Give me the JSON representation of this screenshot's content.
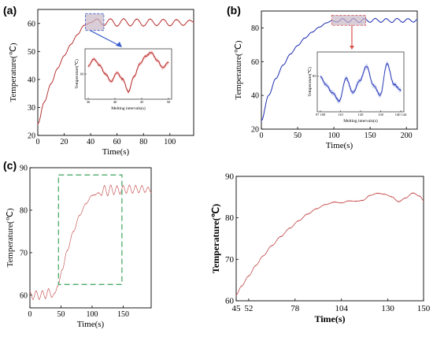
{
  "panel_labels": [
    "(a)",
    "(b)",
    "(c)"
  ],
  "colors": {
    "red_line": "#b22222",
    "red_band": "#f2a8a8",
    "blue_line": "#1f2fb0",
    "blue_band": "#aab4ee",
    "highlight_fill": "#c9b8c6",
    "arrow_blue": "#3a5fcd",
    "arrow_red": "#d9534f",
    "green_dash": "#4daa6a"
  },
  "chart_data": [
    {
      "id": "a-main",
      "type": "line",
      "xlabel": "Time(s)",
      "ylabel": "Temperature(℃)",
      "xlim": [
        0,
        118
      ],
      "ylim": [
        20,
        65
      ],
      "xticks": [
        0,
        20,
        40,
        60,
        80,
        100
      ],
      "yticks": [
        20,
        30,
        40,
        50,
        60
      ],
      "series": [
        {
          "color": "red",
          "x": [
            0,
            5,
            10,
            15,
            20,
            25,
            30,
            35,
            40,
            45,
            50,
            55,
            60,
            65,
            70,
            75,
            80,
            85,
            90,
            95,
            100,
            105,
            110,
            115,
            118
          ],
          "values": [
            24,
            32,
            38.5,
            44,
            48.5,
            52.5,
            56,
            59.3,
            60.3,
            61.6,
            59.2,
            61.7,
            59,
            61.7,
            59.1,
            61.6,
            59,
            61.6,
            59.2,
            61.5,
            59.1,
            61.4,
            59.3,
            61.2,
            60.4
          ]
        }
      ],
      "highlight_x": [
        36,
        50
      ]
    },
    {
      "id": "a-inset",
      "type": "line",
      "xlabel": "Melting intervals(s)",
      "ylabel": "Temperature(℃)",
      "ylim": [
        58,
        62
      ],
      "xtick_labels": [
        "36",
        "40",
        "45",
        "50"
      ],
      "ytick_labels": [
        "60"
      ],
      "series": [
        {
          "color": "red",
          "x": [
            36,
            37,
            38,
            39,
            40,
            41,
            42,
            43,
            44,
            45,
            46,
            47,
            48,
            49,
            50
          ],
          "values": [
            60.6,
            61.2,
            60.7,
            60.0,
            59.4,
            60.1,
            59.6,
            58.6,
            59.8,
            60.8,
            61.4,
            61.7,
            61.1,
            60.5,
            60.9
          ]
        }
      ]
    },
    {
      "id": "b-main",
      "type": "line",
      "xlabel": "Time(s)",
      "ylabel": "Temperature(℃)",
      "xlim": [
        0,
        215
      ],
      "ylim": [
        20,
        90
      ],
      "xticks": [
        0,
        50,
        100,
        150,
        200
      ],
      "yticks": [
        20,
        40,
        60,
        80
      ],
      "series": [
        {
          "color": "blue",
          "x": [
            0,
            10,
            20,
            30,
            40,
            50,
            60,
            70,
            80,
            90,
            97,
            105,
            112,
            120,
            127,
            135,
            142,
            150,
            157,
            165,
            172,
            180,
            187,
            195,
            202,
            210,
            215
          ],
          "values": [
            25,
            40,
            50,
            58,
            64.5,
            69.5,
            74,
            77.5,
            80.5,
            83,
            84.2,
            83.5,
            85.5,
            83.3,
            85.6,
            83.2,
            85.5,
            83.3,
            85.6,
            83.3,
            85.5,
            83.2,
            85.6,
            83.3,
            85.5,
            83.4,
            85
          ]
        }
      ],
      "highlight_x": [
        97,
        144
      ]
    },
    {
      "id": "b-inset",
      "type": "line",
      "xlabel": "Melting intervals(s)",
      "ylabel": "Temperature(℃)",
      "ylim": [
        82,
        87
      ],
      "xtick_labels": [
        "97 100",
        "110",
        "120",
        "130",
        "140 144"
      ],
      "ytick_labels": [
        "85"
      ],
      "series": [
        {
          "color": "blue",
          "x": [
            97,
            100,
            104,
            108,
            112,
            116,
            120,
            124,
            128,
            132,
            136,
            140,
            144
          ],
          "values": [
            84.9,
            84.3,
            83.6,
            82.9,
            84.8,
            83.6,
            84.6,
            85.8,
            84.2,
            83.4,
            86.0,
            84.3,
            83.8
          ]
        }
      ]
    },
    {
      "id": "c-left",
      "type": "line",
      "xlabel": "Time(s)",
      "ylabel": "Temperature(℃)",
      "xlim": [
        0,
        195
      ],
      "ylim": [
        57,
        90
      ],
      "xticks": [
        0,
        50,
        100,
        150
      ],
      "yticks": [
        60,
        70,
        80,
        90
      ],
      "series": [
        {
          "color": "red",
          "x": [
            0,
            5,
            10,
            15,
            20,
            25,
            30,
            35,
            40,
            45,
            52,
            60,
            70,
            80,
            90,
            100,
            105,
            110,
            115,
            120,
            125,
            130,
            135,
            140,
            145,
            150,
            155,
            160,
            165,
            170,
            175,
            180,
            185,
            190,
            195
          ],
          "values": [
            60.8,
            59,
            61,
            59,
            61,
            59.2,
            61.5,
            59.5,
            60.5,
            62.2,
            66,
            70.5,
            75,
            78.8,
            81.5,
            83.5,
            83.6,
            84.1,
            83.5,
            85.8,
            83.4,
            85.9,
            83.7,
            85.7,
            83.8,
            85.8,
            84,
            85.9,
            84,
            85.8,
            84.1,
            85.8,
            84.2,
            85.4,
            84.2
          ]
        }
      ],
      "highlight_box": {
        "x": [
          46,
          148
        ],
        "y": [
          62.5,
          88.3
        ]
      }
    },
    {
      "id": "c-right",
      "type": "line",
      "xlabel": "Time(s)",
      "ylabel": "Temperature(℃)",
      "xlim": [
        45,
        150
      ],
      "ylim": [
        60,
        90
      ],
      "xtick_labels": [
        "45",
        "52",
        "78",
        "104",
        "130",
        "150"
      ],
      "xticks": [
        45,
        52,
        78,
        104,
        130,
        150
      ],
      "yticks": [
        60,
        70,
        80,
        90
      ],
      "series": [
        {
          "color": "red",
          "x": [
            45,
            48,
            52,
            56,
            60,
            65,
            70,
            75,
            80,
            85,
            90,
            95,
            100,
            104,
            108,
            112,
            116,
            120,
            124,
            128,
            132,
            136,
            140,
            144,
            148,
            150
          ],
          "values": [
            61.4,
            63.5,
            66,
            68.5,
            70.8,
            73.3,
            75.5,
            77.5,
            79.3,
            80.9,
            82.2,
            83.2,
            83.8,
            83.6,
            84.1,
            84,
            84.2,
            85.4,
            85.9,
            85.7,
            85.1,
            83.9,
            84.8,
            86,
            85.2,
            84.1
          ]
        }
      ]
    }
  ]
}
